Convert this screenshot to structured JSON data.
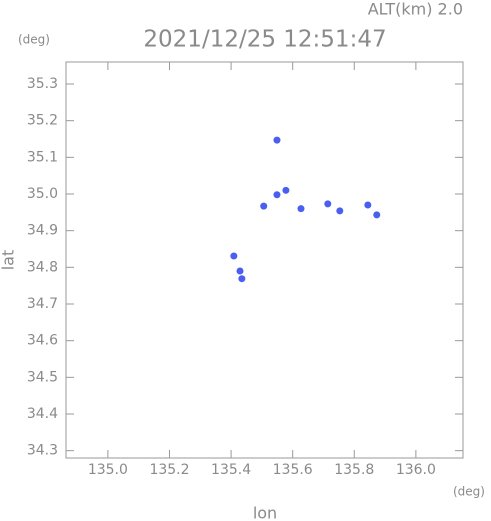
{
  "chart_data": {
    "type": "scatter",
    "title": "2021/12/25 12:51:47",
    "subtitle": "ALT(km)  2.0",
    "y_unit": "(deg)",
    "x_unit": "(deg)",
    "x_label": "lon",
    "y_label": "lat",
    "color": "#4a5ef0",
    "x": [
      135.549,
      135.549,
      135.578,
      135.506,
      135.627,
      135.714,
      135.753,
      135.844,
      135.873,
      135.409,
      135.429,
      135.435
    ],
    "values": [
      35.147,
      34.998,
      35.01,
      34.967,
      34.96,
      34.973,
      34.954,
      34.97,
      34.943,
      34.831,
      34.79,
      34.769
    ],
    "xlim": [
      134.864,
      136.153
    ],
    "ylim": [
      34.28,
      35.36
    ],
    "xticks": [
      {
        "value": 135,
        "label": "135.0"
      },
      135.2,
      135.4,
      135.6,
      135.8,
      {
        "value": 136,
        "label": "136.0"
      }
    ],
    "yticks": [
      34.3,
      34.4,
      34.5,
      34.6,
      34.7,
      34.8,
      34.9,
      {
        "value": 35,
        "label": "35.0"
      },
      35.1,
      35.2,
      35.3
    ]
  }
}
